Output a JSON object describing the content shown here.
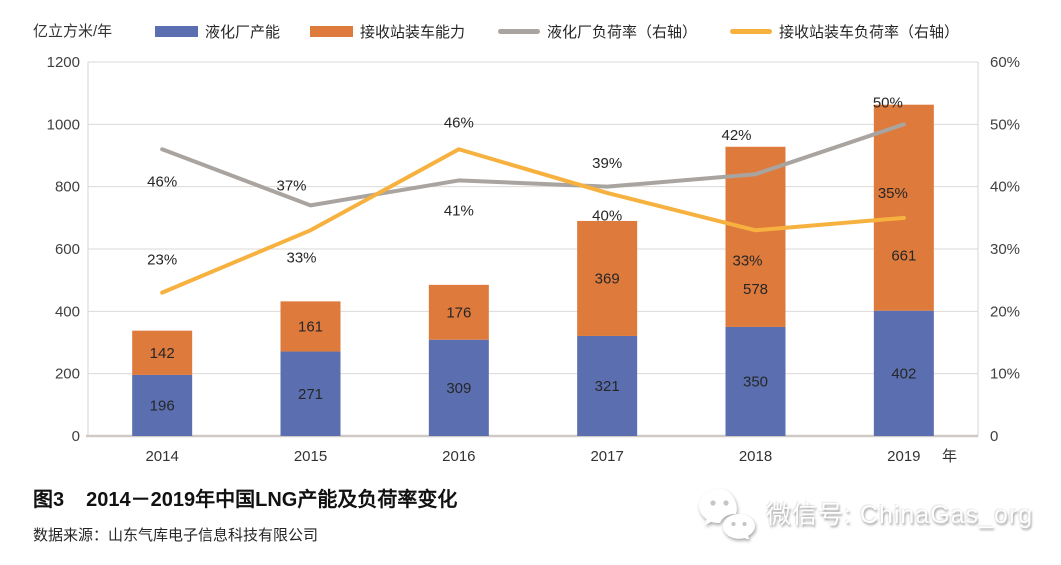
{
  "unit_label": "亿立方米/年",
  "legend": {
    "items": [
      {
        "label": "液化厂产能",
        "type": "rect",
        "color": "#5b6fb0"
      },
      {
        "label": "接收站装车能力",
        "type": "rect",
        "color": "#de7a3c"
      },
      {
        "label": "液化厂负荷率（右轴）",
        "type": "line",
        "color": "#a9a49f"
      },
      {
        "label": "接收站装车负荷率（右轴）",
        "type": "line",
        "color": "#f6b13f"
      }
    ]
  },
  "chart_data": {
    "type": "bar",
    "subtype": "stacked-bars-with-lines",
    "categories": [
      "2014",
      "2015",
      "2016",
      "2017",
      "2018",
      "2019"
    ],
    "x_axis_suffix": "年",
    "bar_series": [
      {
        "name": "液化厂产能",
        "color": "#5b6fb0",
        "values": [
          196,
          271,
          309,
          321,
          350,
          402
        ]
      },
      {
        "name": "接收站装车能力",
        "color": "#de7a3c",
        "values": [
          142,
          161,
          176,
          369,
          578,
          661
        ]
      }
    ],
    "line_series": [
      {
        "name": "液化厂负荷率（右轴）",
        "color": "#a9a49f",
        "axis": "right",
        "values": [
          46,
          37,
          41,
          40,
          42,
          50
        ]
      },
      {
        "name": "接收站装车负荷率（右轴）",
        "color": "#f6b13f",
        "axis": "right",
        "values": [
          23,
          33,
          46,
          39,
          33,
          35
        ]
      }
    ],
    "left_axis": {
      "title": "亿立方米/年",
      "min": 0,
      "max": 1200,
      "ticks": [
        "1200",
        "1000",
        "800",
        "600",
        "400",
        "200",
        "0"
      ]
    },
    "right_axis": {
      "min": 0,
      "max": 60,
      "ticks": [
        "60%",
        "50%",
        "40%",
        "30%",
        "20%",
        "10%",
        "0"
      ]
    },
    "grid": true,
    "legend_position": "top"
  },
  "caption": {
    "prefix": "图3",
    "title": "2014－2019年中国LNG产能及负荷率变化"
  },
  "source": "数据来源：山东气库电子信息科技有限公司",
  "watermark": {
    "icon": "wechat-icon",
    "text": "微信号: ChinaGas_org"
  }
}
